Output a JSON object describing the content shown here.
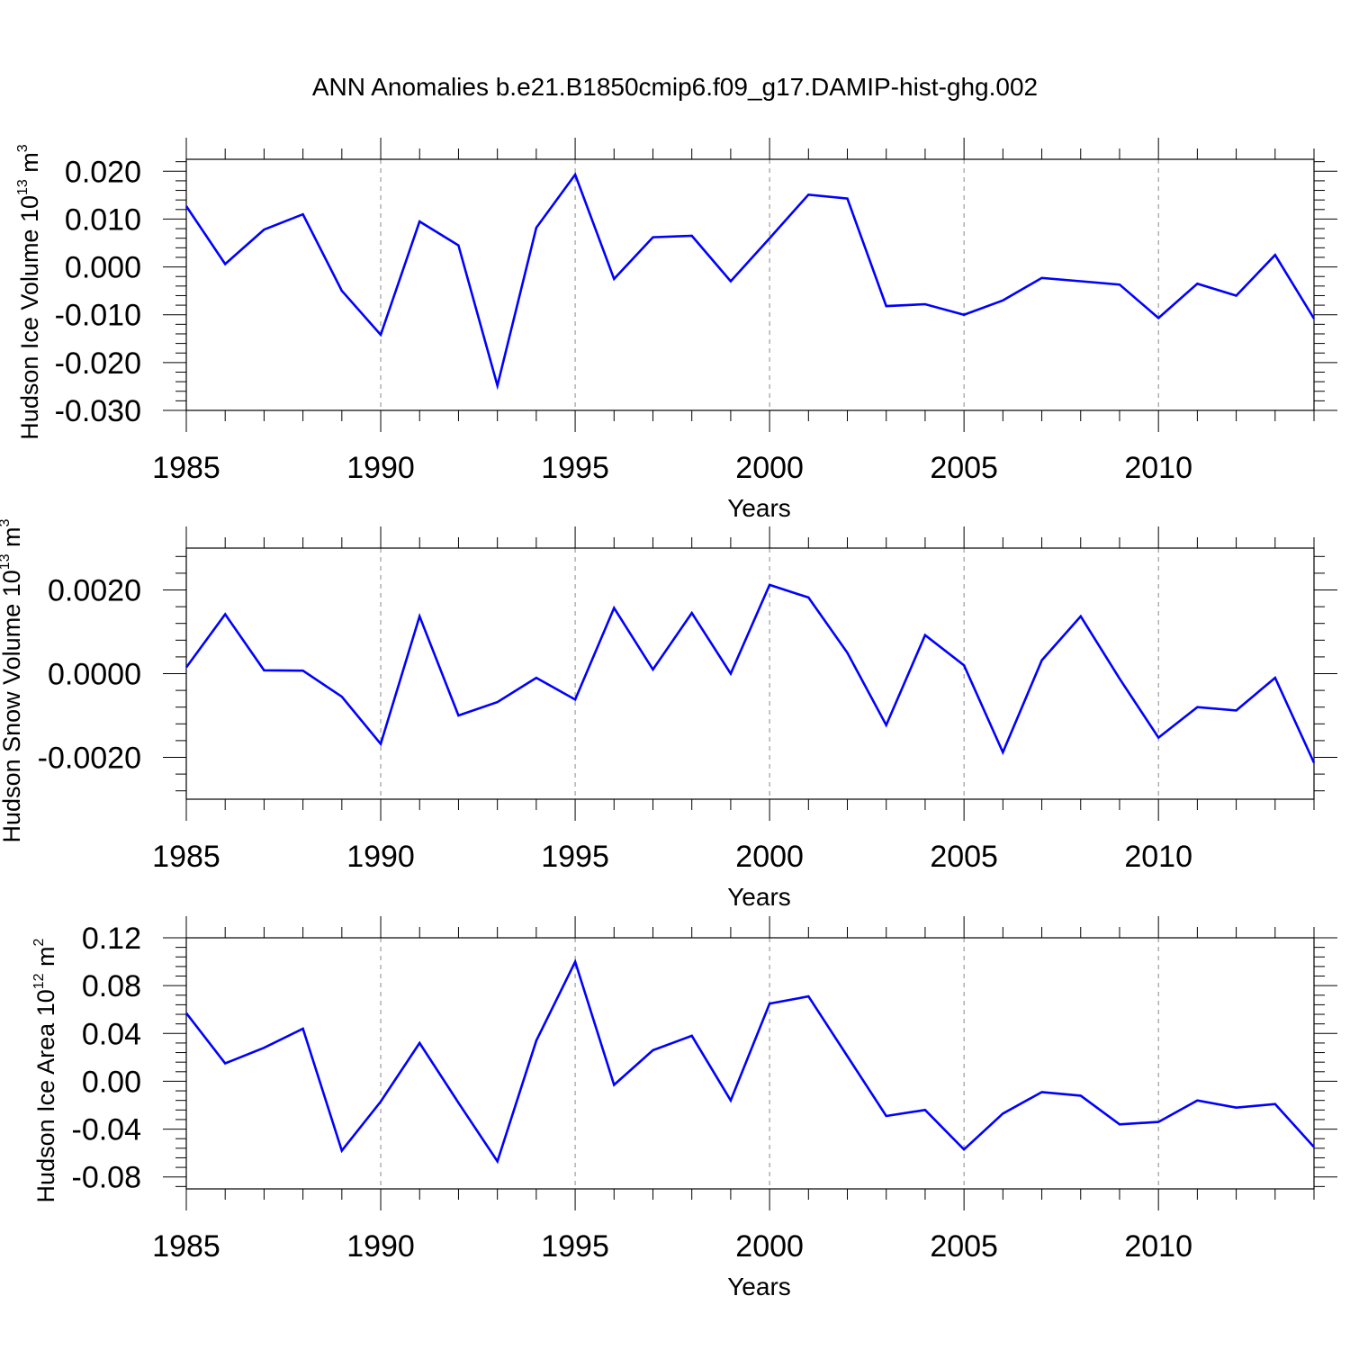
{
  "title": "ANN Anomalies b.e21.B1850cmip6.f09_g17.DAMIP-hist-ghg.002",
  "colors": {
    "line": "#0000ff",
    "axis": "#000000",
    "grid": "#888888"
  },
  "chart_data": [
    {
      "type": "line",
      "ylabel": {
        "main": "Hudson Ice Volume 10",
        "exp": "13",
        "unit": " m",
        "unit_exp": "3"
      },
      "xlabel": "Years",
      "xlim": [
        1985,
        2014
      ],
      "ylim": [
        -0.03,
        0.0225
      ],
      "x_ticks": [
        1985,
        1990,
        1995,
        2000,
        2005,
        2010
      ],
      "x_tick_labels": [
        "1985",
        "1990",
        "1995",
        "2000",
        "2005",
        "2010"
      ],
      "y_ticks": [
        -0.03,
        -0.02,
        -0.01,
        0.0,
        0.01,
        0.02
      ],
      "y_tick_labels": [
        "-0.030",
        "-0.020",
        "-0.010",
        "0.000",
        "0.010",
        "0.020"
      ],
      "x": [
        1985,
        1986,
        1987,
        1988,
        1989,
        1990,
        1991,
        1992,
        1993,
        1994,
        1995,
        1996,
        1997,
        1998,
        1999,
        2000,
        2001,
        2002,
        2003,
        2004,
        2005,
        2006,
        2007,
        2008,
        2009,
        2010,
        2011,
        2012,
        2013,
        2014
      ],
      "series": [
        {
          "name": "Hudson Ice Volume",
          "values": [
            0.0127,
            0.0006,
            0.0078,
            0.011,
            -0.005,
            -0.0142,
            0.0095,
            0.0045,
            -0.0248,
            0.0082,
            0.0193,
            -0.0025,
            0.0062,
            0.0065,
            -0.003,
            0.006,
            0.0151,
            0.0143,
            -0.0082,
            -0.0078,
            -0.01,
            -0.007,
            -0.0023,
            -0.003,
            -0.0037,
            -0.0107,
            -0.0035,
            -0.006,
            0.0025,
            -0.0108
          ]
        }
      ]
    },
    {
      "type": "line",
      "ylabel": {
        "main": "Hudson Snow Volume 10",
        "exp": "13",
        "unit": " m",
        "unit_exp": "3"
      },
      "xlabel": "Years",
      "xlim": [
        1985,
        2014
      ],
      "ylim": [
        -0.003,
        0.003
      ],
      "x_ticks": [
        1985,
        1990,
        1995,
        2000,
        2005,
        2010
      ],
      "x_tick_labels": [
        "1985",
        "1990",
        "1995",
        "2000",
        "2005",
        "2010"
      ],
      "y_ticks": [
        -0.002,
        0.0,
        0.002
      ],
      "y_tick_labels": [
        "-0.0020",
        "0.0000",
        "0.0020"
      ],
      "x": [
        1985,
        1986,
        1987,
        1988,
        1989,
        1990,
        1991,
        1992,
        1993,
        1994,
        1995,
        1996,
        1997,
        1998,
        1999,
        2000,
        2001,
        2002,
        2003,
        2004,
        2005,
        2006,
        2007,
        2008,
        2009,
        2010,
        2011,
        2012,
        2013,
        2014
      ],
      "series": [
        {
          "name": "Hudson Snow Volume",
          "values": [
            0.00015,
            0.00142,
            8e-05,
            7e-05,
            -0.00055,
            -0.00168,
            0.00137,
            -0.001,
            -0.00068,
            -0.0001,
            -0.00062,
            0.00157,
            0.0001,
            0.00145,
            0.0,
            0.00212,
            0.00182,
            0.0005,
            -0.00123,
            0.00092,
            0.0002,
            -0.00188,
            0.00032,
            0.00137,
            -0.00012,
            -0.00153,
            -0.0008,
            -0.00088,
            -0.0001,
            -0.00213
          ]
        }
      ]
    },
    {
      "type": "line",
      "ylabel": {
        "main": "Hudson Ice Area 10",
        "exp": "12",
        "unit": " m",
        "unit_exp": "2"
      },
      "xlabel": "Years",
      "xlim": [
        1985,
        2014
      ],
      "ylim": [
        -0.09,
        0.12
      ],
      "x_ticks": [
        1985,
        1990,
        1995,
        2000,
        2005,
        2010
      ],
      "x_tick_labels": [
        "1985",
        "1990",
        "1995",
        "2000",
        "2005",
        "2010"
      ],
      "y_ticks": [
        -0.08,
        -0.04,
        0.0,
        0.04,
        0.08,
        0.12
      ],
      "y_tick_labels": [
        "-0.08",
        "-0.04",
        "0.00",
        "0.04",
        "0.08",
        "0.12"
      ],
      "x": [
        1985,
        1986,
        1987,
        1988,
        1989,
        1990,
        1991,
        1992,
        1993,
        1994,
        1995,
        1996,
        1997,
        1998,
        1999,
        2000,
        2001,
        2002,
        2003,
        2004,
        2005,
        2006,
        2007,
        2008,
        2009,
        2010,
        2011,
        2012,
        2013,
        2014
      ],
      "series": [
        {
          "name": "Hudson Ice Area",
          "values": [
            0.057,
            0.015,
            0.028,
            0.044,
            -0.058,
            -0.017,
            0.032,
            -0.018,
            -0.067,
            0.034,
            0.1,
            -0.003,
            0.026,
            0.038,
            -0.016,
            0.065,
            0.071,
            0.021,
            -0.029,
            -0.024,
            -0.057,
            -0.027,
            -0.009,
            -0.012,
            -0.036,
            -0.034,
            -0.016,
            -0.022,
            -0.019,
            -0.055
          ]
        }
      ]
    }
  ]
}
